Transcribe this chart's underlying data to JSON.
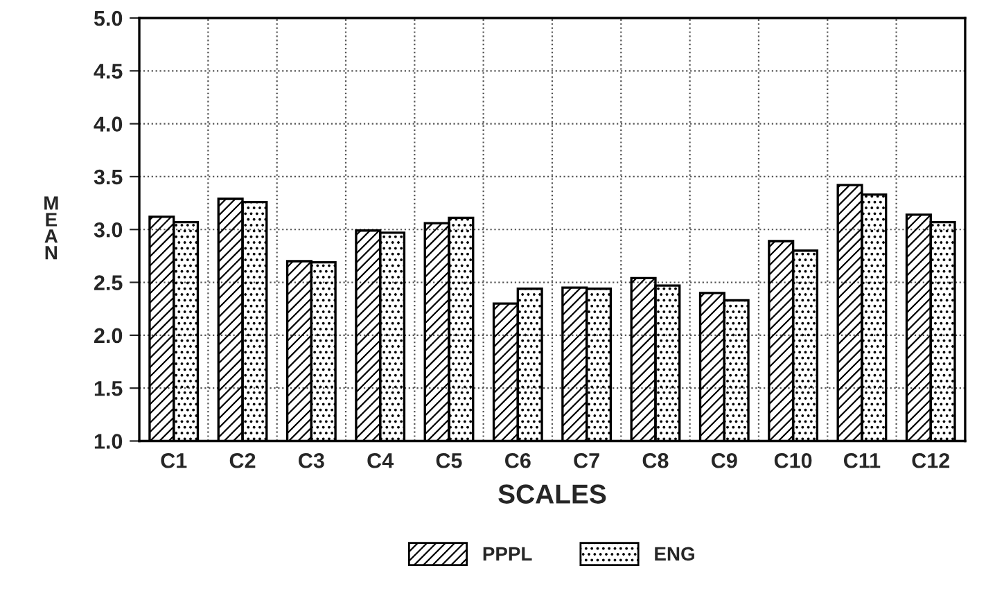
{
  "chart_data": {
    "type": "bar",
    "xlabel": "SCALES",
    "ylabel": "MEAN",
    "categories": [
      "C1",
      "C2",
      "C3",
      "C4",
      "C5",
      "C6",
      "C7",
      "C8",
      "C9",
      "C10",
      "C11",
      "C12"
    ],
    "series": [
      {
        "name": "PPPL",
        "color": "#000000",
        "values": [
          3.12,
          3.29,
          2.7,
          2.99,
          3.06,
          2.3,
          2.45,
          2.54,
          2.4,
          2.89,
          3.42,
          3.14
        ]
      },
      {
        "name": "ENG",
        "color": "#000000",
        "values": [
          3.07,
          3.26,
          2.69,
          2.97,
          3.11,
          2.44,
          2.44,
          2.47,
          2.33,
          2.8,
          3.33,
          3.07
        ]
      }
    ],
    "ylim": [
      1.0,
      5.0
    ],
    "yticks": [
      {
        "value": 1.0,
        "label": "1.0"
      },
      {
        "value": 1.5,
        "label": "1.5"
      },
      {
        "value": 2.0,
        "label": "2.0"
      },
      {
        "value": 2.5,
        "label": "2.5"
      },
      {
        "value": 3.0,
        "label": "3.0"
      },
      {
        "value": 3.5,
        "label": "3.5"
      },
      {
        "value": 4.0,
        "label": "4.0"
      },
      {
        "value": 4.5,
        "label": "4.5"
      },
      {
        "value": 5.0,
        "label": "5.0"
      }
    ],
    "grid": true,
    "legend": "bottom"
  }
}
